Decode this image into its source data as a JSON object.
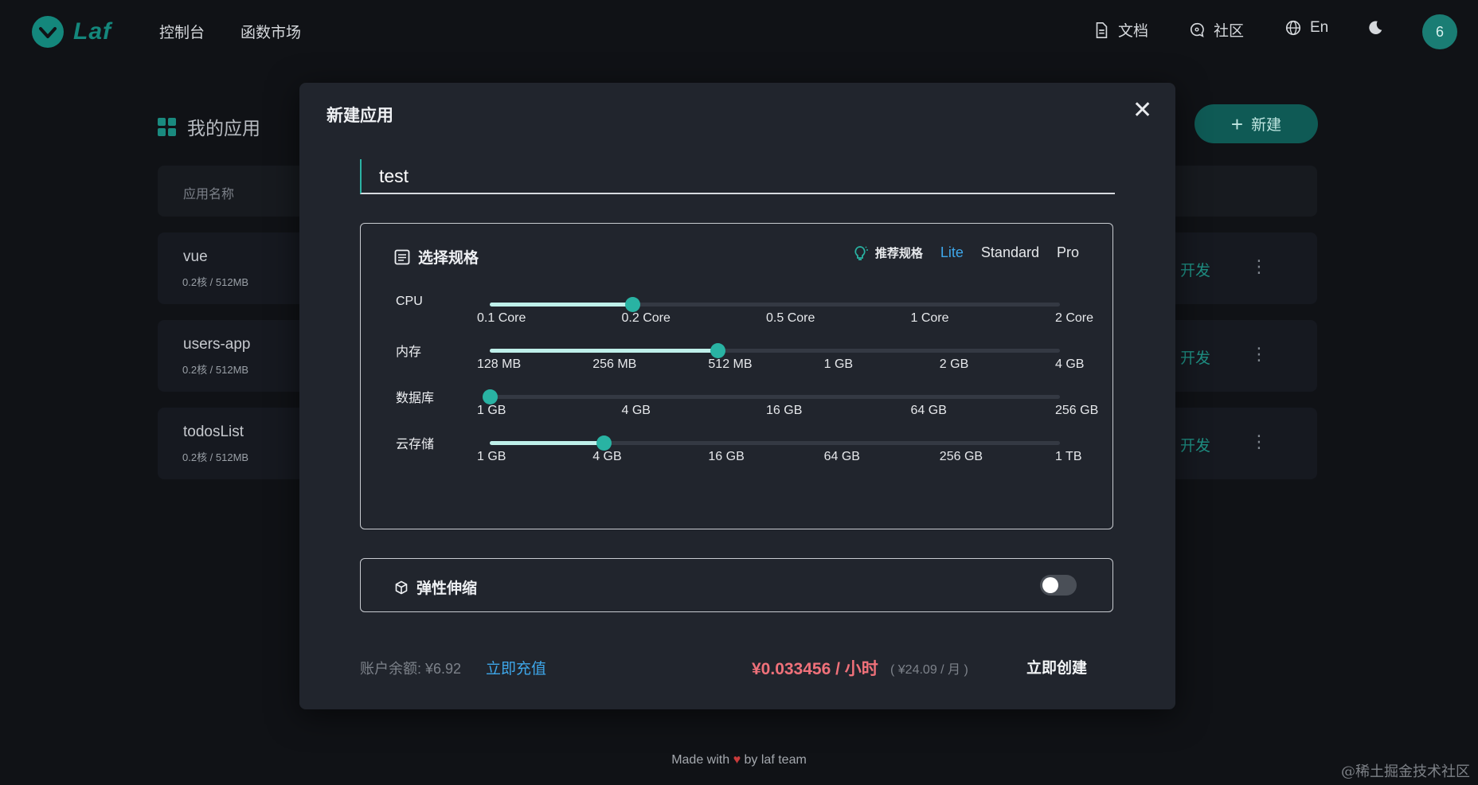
{
  "header": {
    "logo_text": "Laf",
    "nav": [
      "控制台",
      "函数市场"
    ],
    "docs": "文档",
    "community": "社区",
    "language": "En",
    "avatar": "6"
  },
  "background": {
    "title": "我的应用",
    "new_button": "新建",
    "table_header": "应用名称",
    "apps": [
      {
        "name": "vue",
        "spec": "0.2核 / 512MB",
        "action": "开发"
      },
      {
        "name": "users-app",
        "spec": "0.2核 / 512MB",
        "action": "开发"
      },
      {
        "name": "todosList",
        "spec": "0.2核 / 512MB",
        "action": "开发"
      }
    ]
  },
  "modal": {
    "title": "新建应用",
    "name_value": "test",
    "spec_title": "选择规格",
    "recommend_label": "推荐规格",
    "presets": [
      "Lite",
      "Standard",
      "Pro"
    ],
    "active_preset": "Lite",
    "sliders": [
      {
        "label": "CPU",
        "ticks": [
          "0.1 Core",
          "0.2 Core",
          "0.5 Core",
          "1 Core",
          "2 Core"
        ],
        "selected": "0.2 Core",
        "selected_index": 1
      },
      {
        "label": "内存",
        "ticks": [
          "128 MB",
          "256 MB",
          "512 MB",
          "1 GB",
          "2 GB",
          "4 GB"
        ],
        "selected": "512 MB",
        "selected_index": 2
      },
      {
        "label": "数据库",
        "ticks": [
          "1 GB",
          "4 GB",
          "16 GB",
          "64 GB",
          "256 GB"
        ],
        "selected": "1 GB",
        "selected_index": 0
      },
      {
        "label": "云存储",
        "ticks": [
          "1 GB",
          "4 GB",
          "16 GB",
          "64 GB",
          "256 GB",
          "1 TB"
        ],
        "selected": "4 GB",
        "selected_index": 1
      }
    ],
    "autoscale_label": "弹性伸缩",
    "autoscale_enabled": false,
    "balance": "账户余额: ¥6.92",
    "recharge": "立即充值",
    "price": "¥0.033456 / 小时",
    "monthly": "( ¥24.09 / 月 )",
    "create": "立即创建"
  },
  "footer": {
    "prefix": "Made with",
    "heart": "♥",
    "suffix": "by laf team"
  },
  "watermark": "@稀土掘金技术社区",
  "colors": {
    "accent": "#29b3a3",
    "link": "#3ea7ea",
    "price": "#f0717a",
    "brand": "#14877c"
  }
}
